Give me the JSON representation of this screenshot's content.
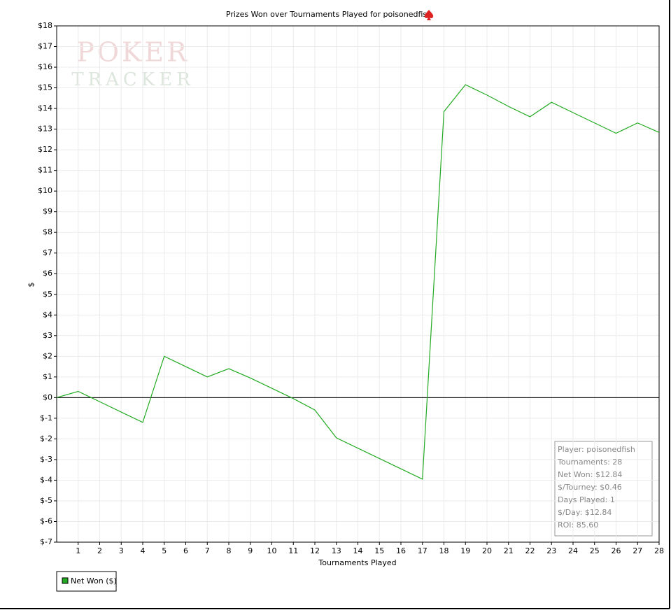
{
  "chart_data": {
    "type": "line",
    "title": "Prizes Won over Tournaments Played for poisonedfish",
    "watermark": [
      "POKER",
      "TRACKER"
    ],
    "xlabel": "Tournaments Played",
    "ylabel": "$",
    "x": [
      0,
      1,
      2,
      3,
      4,
      5,
      6,
      7,
      8,
      9,
      10,
      11,
      12,
      13,
      14,
      15,
      16,
      17,
      18,
      19,
      20,
      21,
      22,
      23,
      24,
      25,
      26,
      27,
      28
    ],
    "series": [
      {
        "name": "Net Won ($)",
        "color": "#22aa22",
        "values": [
          0,
          0.3,
          -0.2,
          -0.7,
          -1.2,
          2.0,
          1.5,
          1.0,
          1.4,
          0.95,
          0.45,
          -0.05,
          -0.6,
          -1.95,
          -2.45,
          -2.95,
          -3.45,
          -3.95,
          13.85,
          15.15,
          14.65,
          14.1,
          13.6,
          14.3,
          13.8,
          13.3,
          12.8,
          13.3,
          12.84
        ]
      }
    ],
    "xlim": [
      0,
      28
    ],
    "xticks": [
      1,
      2,
      3,
      4,
      5,
      6,
      7,
      8,
      9,
      10,
      11,
      12,
      13,
      14,
      15,
      16,
      17,
      18,
      19,
      20,
      21,
      22,
      23,
      24,
      25,
      26,
      27,
      28
    ],
    "ylim": [
      -7,
      18
    ],
    "yticks": [
      {
        "value": -7,
        "label": "$-7"
      },
      {
        "value": -6,
        "label": "$-6"
      },
      {
        "value": -5,
        "label": "$-5"
      },
      {
        "value": -4,
        "label": "$-4"
      },
      {
        "value": -3,
        "label": "$-3"
      },
      {
        "value": -2,
        "label": "$-2"
      },
      {
        "value": -1,
        "label": "$-1"
      },
      {
        "value": 0,
        "label": "$0"
      },
      {
        "value": 1,
        "label": "$1"
      },
      {
        "value": 2,
        "label": "$2"
      },
      {
        "value": 3,
        "label": "$3"
      },
      {
        "value": 4,
        "label": "$4"
      },
      {
        "value": 5,
        "label": "$5"
      },
      {
        "value": 6,
        "label": "$6"
      },
      {
        "value": 7,
        "label": "$7"
      },
      {
        "value": 8,
        "label": "$8"
      },
      {
        "value": 9,
        "label": "$9"
      },
      {
        "value": 10,
        "label": "$10"
      },
      {
        "value": 11,
        "label": "$11"
      },
      {
        "value": 12,
        "label": "$12"
      },
      {
        "value": 13,
        "label": "$13"
      },
      {
        "value": 14,
        "label": "$14"
      },
      {
        "value": 15,
        "label": "$15"
      },
      {
        "value": 16,
        "label": "$16"
      },
      {
        "value": 17,
        "label": "$17"
      },
      {
        "value": 18,
        "label": "$18"
      }
    ],
    "grid": true,
    "stats": [
      "Player: poisonedfish",
      "Tournaments: 28",
      "Net Won: $12.84",
      "$/Tourney: $0.46",
      "Days Played: 1",
      "$/Day: $12.84",
      "ROI: 85.60"
    ]
  }
}
